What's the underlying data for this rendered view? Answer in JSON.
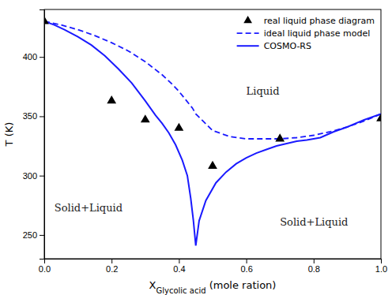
{
  "chart_data": {
    "type": "line",
    "xlabel": "XGlycolic acid (mole ration)",
    "ylabel": "T (K)",
    "xlim": [
      0.0,
      1.0
    ],
    "ylim": [
      230,
      440
    ],
    "xticks": [
      {
        "value": 0.0,
        "label": "0.0"
      },
      0.2,
      0.4,
      0.6,
      0.8,
      {
        "value": 1.0,
        "label": "1.0"
      }
    ],
    "yticks": [
      250,
      300,
      350,
      400
    ],
    "grid": false,
    "legend": "upper right",
    "series": [
      {
        "name": "real liquid phase diagram",
        "type": "scatter",
        "marker": "triangle",
        "color": "#000000",
        "x": [
          0.0,
          0.2,
          0.3,
          0.4,
          0.5,
          0.7,
          1.0
        ],
        "values": [
          430,
          363,
          347,
          340,
          308,
          331,
          348
        ]
      },
      {
        "name": "ideal liquid phase model",
        "type": "line",
        "line_style": "dashed",
        "color": "#1a1aff",
        "x": [
          0.0,
          0.05,
          0.1,
          0.15,
          0.2,
          0.25,
          0.3,
          0.35,
          0.38,
          0.4,
          0.42,
          0.44,
          0.45,
          0.45,
          0.5,
          0.55,
          0.6,
          0.65,
          0.7,
          0.75,
          0.8,
          0.85,
          0.9,
          0.95,
          1.0
        ],
        "values": [
          430,
          427,
          423,
          418,
          412,
          405,
          396,
          385,
          377,
          371,
          364,
          357,
          352,
          352,
          338,
          333,
          331,
          331,
          331,
          332,
          334,
          337,
          341,
          346,
          352
        ]
      },
      {
        "name": "COSMO-RS",
        "type": "line",
        "line_style": "solid",
        "color": "#1a1aff",
        "x": [
          0.0,
          0.03,
          0.06,
          0.1,
          0.14,
          0.18,
          0.22,
          0.26,
          0.3,
          0.33,
          0.35,
          0.37,
          0.39,
          0.41,
          0.425,
          0.435,
          0.443,
          0.45,
          0.45,
          0.46,
          0.48,
          0.51,
          0.54,
          0.57,
          0.6,
          0.63,
          0.66,
          0.69,
          0.72,
          0.75,
          0.78,
          0.82,
          0.86,
          0.9,
          0.95,
          1.0
        ],
        "values": [
          430,
          427,
          423,
          417,
          410,
          401,
          390,
          378,
          363,
          351,
          344,
          336,
          326,
          313,
          300,
          281,
          262,
          241,
          241,
          262,
          279,
          294,
          303,
          310,
          315,
          319,
          322,
          325,
          327,
          329,
          330,
          332,
          337,
          341,
          347,
          352
        ]
      }
    ],
    "annotations": [
      {
        "text": "Liquid",
        "x": 0.6,
        "y": 368
      },
      {
        "text": "Solid+Liquid",
        "x": 0.03,
        "y": 270
      },
      {
        "text": "Solid+Liquid",
        "x": 0.7,
        "y": 258
      }
    ]
  }
}
